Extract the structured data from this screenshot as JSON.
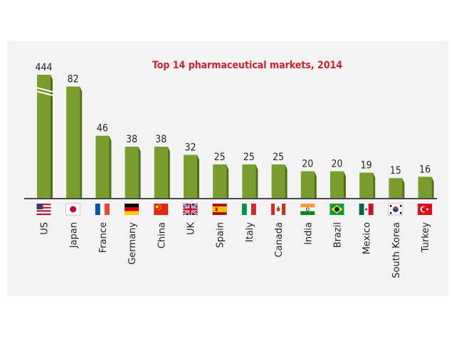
{
  "chart_data": {
    "type": "bar",
    "title": "Top 14 pharmaceutical markets, 2014",
    "categories": [
      "US",
      "Japan",
      "France",
      "Germany",
      "China",
      "UK",
      "Spain",
      "Italy",
      "Canada",
      "India",
      "Brazil",
      "Mexico",
      "South Korea",
      "Turkey"
    ],
    "values": [
      444,
      82,
      46,
      38,
      38,
      32,
      25,
      25,
      25,
      20,
      20,
      19,
      15,
      16
    ],
    "value_labels": [
      "444",
      "82",
      "46",
      "38",
      "38",
      "32",
      "25",
      "25",
      "25",
      "20",
      "20",
      "19",
      "15",
      "16"
    ],
    "flags": [
      "us-flag",
      "japan-flag",
      "france-flag",
      "germany-flag",
      "china-flag",
      "uk-flag",
      "spain-flag",
      "italy-flag",
      "canada-flag",
      "india-flag",
      "brazil-flag",
      "mexico-flag",
      "south-korea-flag",
      "turkey-flag"
    ],
    "axis_break": "US bar truncated (broken axis)",
    "xlabel": "",
    "ylabel": "",
    "ylim": [
      0,
      85
    ]
  },
  "colors": {
    "bar": "#7a9e2e",
    "bar_shade": "#4f6e16",
    "title": "#d0202e",
    "axis": "#4a4a4a",
    "panel": "#f3f3f3"
  }
}
